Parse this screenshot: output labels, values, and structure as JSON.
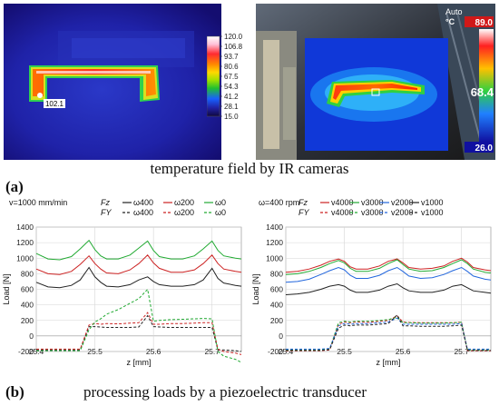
{
  "ir": {
    "left": {
      "scale_ticks": [
        "120.0",
        "106.8",
        "93.7",
        "80.6",
        "67.5",
        "54.3",
        "41.2",
        "28.1",
        "15.0"
      ],
      "spot_label": "102.1",
      "colors": [
        "#ffffff",
        "#ffd0e0",
        "#ff3030",
        "#ff8000",
        "#ffd000",
        "#a8e000",
        "#20c020",
        "#1860ff",
        "#2020a0",
        "#100840"
      ]
    },
    "right": {
      "top_label": "Auto",
      "unit": "°C",
      "max": "89.0",
      "reading": "68.4",
      "min": "26.0"
    }
  },
  "caption_a": "temperature field by IR cameras",
  "label_a": "(a)",
  "caption_b": "processing loads by a piezoelectric transducer",
  "label_b": "(b)",
  "chart_data": [
    {
      "type": "line",
      "title": "v=1000 mm/min",
      "xlabel": "z [mm]",
      "ylabel": "Load [N]",
      "xlim": [
        25.4,
        25.75
      ],
      "ylim": [
        -200,
        1400
      ],
      "xticks": [
        "25.4",
        "25.5",
        "25.6",
        "25.7"
      ],
      "yticks": [
        "-200",
        "0",
        "200",
        "400",
        "600",
        "800",
        "1000",
        "1200",
        "1400"
      ],
      "legend": [
        {
          "prefix": "Fz",
          "style": "solid",
          "label": "ω400",
          "color": "#222222"
        },
        {
          "prefix": "",
          "style": "solid",
          "label": "ω200",
          "color": "#cc2222"
        },
        {
          "prefix": "",
          "style": "solid",
          "label": "ω0",
          "color": "#22aa33"
        },
        {
          "prefix": "FY",
          "style": "dashed",
          "label": "ω400",
          "color": "#222222"
        },
        {
          "prefix": "",
          "style": "dashed",
          "label": "ω200",
          "color": "#cc2222"
        },
        {
          "prefix": "",
          "style": "dashed",
          "label": "ω0",
          "color": "#22aa33"
        }
      ],
      "x": [
        25.4,
        25.42,
        25.44,
        25.46,
        25.475,
        25.49,
        25.5,
        25.51,
        25.52,
        25.54,
        25.56,
        25.575,
        25.59,
        25.6,
        25.61,
        25.63,
        25.65,
        25.67,
        25.685,
        25.7,
        25.71,
        25.72,
        25.74,
        25.75
      ],
      "series": [
        {
          "name": "Fz ω400",
          "style": "solid",
          "color": "#222222",
          "values": [
            690,
            630,
            620,
            650,
            720,
            880,
            760,
            690,
            640,
            630,
            660,
            720,
            760,
            700,
            660,
            640,
            640,
            660,
            720,
            870,
            740,
            680,
            650,
            640
          ]
        },
        {
          "name": "Fz ω200",
          "style": "solid",
          "color": "#cc2222",
          "values": [
            860,
            800,
            790,
            830,
            920,
            1030,
            930,
            860,
            810,
            800,
            850,
            930,
            1040,
            940,
            870,
            820,
            820,
            850,
            930,
            1040,
            930,
            860,
            830,
            820
          ]
        },
        {
          "name": "Fz ω0",
          "style": "solid",
          "color": "#22aa33",
          "values": [
            1060,
            990,
            980,
            1020,
            1120,
            1230,
            1110,
            1030,
            990,
            990,
            1040,
            1130,
            1220,
            1100,
            1020,
            990,
            990,
            1030,
            1120,
            1220,
            1100,
            1030,
            1000,
            990
          ]
        },
        {
          "name": "FY ω400",
          "style": "dashed",
          "color": "#222222",
          "values": [
            -180,
            -180,
            -180,
            -180,
            -180,
            120,
            120,
            115,
            110,
            110,
            110,
            115,
            260,
            120,
            115,
            110,
            110,
            110,
            110,
            110,
            -180,
            -180,
            -190,
            -200
          ]
        },
        {
          "name": "FY ω200",
          "style": "dashed",
          "color": "#cc2222",
          "values": [
            -170,
            -170,
            -170,
            -170,
            -170,
            140,
            160,
            150,
            160,
            155,
            165,
            170,
            300,
            150,
            150,
            160,
            160,
            165,
            170,
            170,
            -170,
            -200,
            -220,
            -240
          ]
        },
        {
          "name": "FY ω0",
          "style": "dashed",
          "color": "#22aa33",
          "values": [
            -190,
            -190,
            -190,
            -190,
            -190,
            80,
            180,
            220,
            280,
            340,
            420,
            480,
            600,
            190,
            200,
            210,
            215,
            220,
            225,
            220,
            -200,
            -260,
            -300,
            -340
          ]
        }
      ]
    },
    {
      "type": "line",
      "title": "ω=400 rpm",
      "xlabel": "z [mm]",
      "ylabel": "Load [N]",
      "xlim": [
        25.4,
        25.75
      ],
      "ylim": [
        -200,
        1400
      ],
      "xticks": [
        "25.4",
        "25.5",
        "25.6",
        "25.7"
      ],
      "yticks": [
        "-200",
        "0",
        "200",
        "400",
        "600",
        "800",
        "1000",
        "1200",
        "1400"
      ],
      "legend": [
        {
          "prefix": "Fz",
          "style": "solid",
          "label": "v4000",
          "color": "#cc2222"
        },
        {
          "prefix": "",
          "style": "solid",
          "label": "v3000",
          "color": "#22aa33"
        },
        {
          "prefix": "",
          "style": "solid",
          "label": "v2000",
          "color": "#2266dd"
        },
        {
          "prefix": "",
          "style": "solid",
          "label": "v1000",
          "color": "#222222"
        },
        {
          "prefix": "FY",
          "style": "dashed",
          "label": "v4000",
          "color": "#cc2222"
        },
        {
          "prefix": "",
          "style": "dashed",
          "label": "v3000",
          "color": "#22aa33"
        },
        {
          "prefix": "",
          "style": "dashed",
          "label": "v2000",
          "color": "#2266dd"
        },
        {
          "prefix": "",
          "style": "dashed",
          "label": "v1000",
          "color": "#222222"
        }
      ],
      "x": [
        25.4,
        25.42,
        25.44,
        25.46,
        25.475,
        25.49,
        25.5,
        25.51,
        25.52,
        25.54,
        25.56,
        25.575,
        25.59,
        25.6,
        25.61,
        25.63,
        25.65,
        25.67,
        25.685,
        25.7,
        25.71,
        25.72,
        25.74,
        25.75
      ],
      "series": [
        {
          "name": "Fz v4000",
          "style": "solid",
          "color": "#cc2222",
          "values": [
            820,
            830,
            860,
            910,
            960,
            990,
            960,
            890,
            860,
            860,
            900,
            960,
            990,
            940,
            880,
            860,
            870,
            900,
            960,
            1000,
            950,
            880,
            850,
            840
          ]
        },
        {
          "name": "Fz v3000",
          "style": "solid",
          "color": "#22aa33",
          "values": [
            790,
            800,
            830,
            880,
            930,
            970,
            940,
            870,
            830,
            830,
            870,
            930,
            980,
            920,
            860,
            830,
            840,
            880,
            930,
            980,
            930,
            860,
            820,
            810
          ]
        },
        {
          "name": "Fz v2000",
          "style": "solid",
          "color": "#2266dd",
          "values": [
            690,
            700,
            730,
            790,
            840,
            880,
            850,
            780,
            740,
            740,
            780,
            840,
            880,
            830,
            770,
            740,
            750,
            790,
            840,
            880,
            830,
            770,
            730,
            720
          ]
        },
        {
          "name": "Fz v1000",
          "style": "solid",
          "color": "#222222",
          "values": [
            530,
            540,
            560,
            600,
            640,
            660,
            640,
            590,
            560,
            560,
            590,
            640,
            670,
            620,
            580,
            560,
            560,
            590,
            640,
            660,
            620,
            580,
            560,
            550
          ]
        },
        {
          "name": "FY v4000",
          "style": "dashed",
          "color": "#cc2222",
          "values": [
            -190,
            -190,
            -190,
            -190,
            -180,
            150,
            180,
            170,
            180,
            175,
            190,
            200,
            260,
            180,
            175,
            170,
            170,
            170,
            170,
            180,
            -190,
            -190,
            -190,
            -190
          ]
        },
        {
          "name": "FY v3000",
          "style": "dashed",
          "color": "#22aa33",
          "values": [
            -180,
            -180,
            -180,
            -180,
            -170,
            170,
            190,
            180,
            190,
            190,
            200,
            210,
            240,
            170,
            170,
            165,
            165,
            165,
            170,
            175,
            -180,
            -180,
            -180,
            -180
          ]
        },
        {
          "name": "FY v2000",
          "style": "dashed",
          "color": "#2266dd",
          "values": [
            -170,
            -170,
            -170,
            -170,
            -160,
            130,
            160,
            150,
            160,
            160,
            170,
            180,
            230,
            150,
            150,
            150,
            150,
            150,
            150,
            160,
            -170,
            -170,
            -170,
            -170
          ]
        },
        {
          "name": "FY v1000",
          "style": "dashed",
          "color": "#222222",
          "values": [
            -185,
            -185,
            -185,
            -185,
            -175,
            100,
            140,
            130,
            140,
            140,
            150,
            160,
            270,
            130,
            130,
            125,
            125,
            125,
            130,
            140,
            -185,
            -185,
            -185,
            -185
          ]
        }
      ]
    }
  ]
}
